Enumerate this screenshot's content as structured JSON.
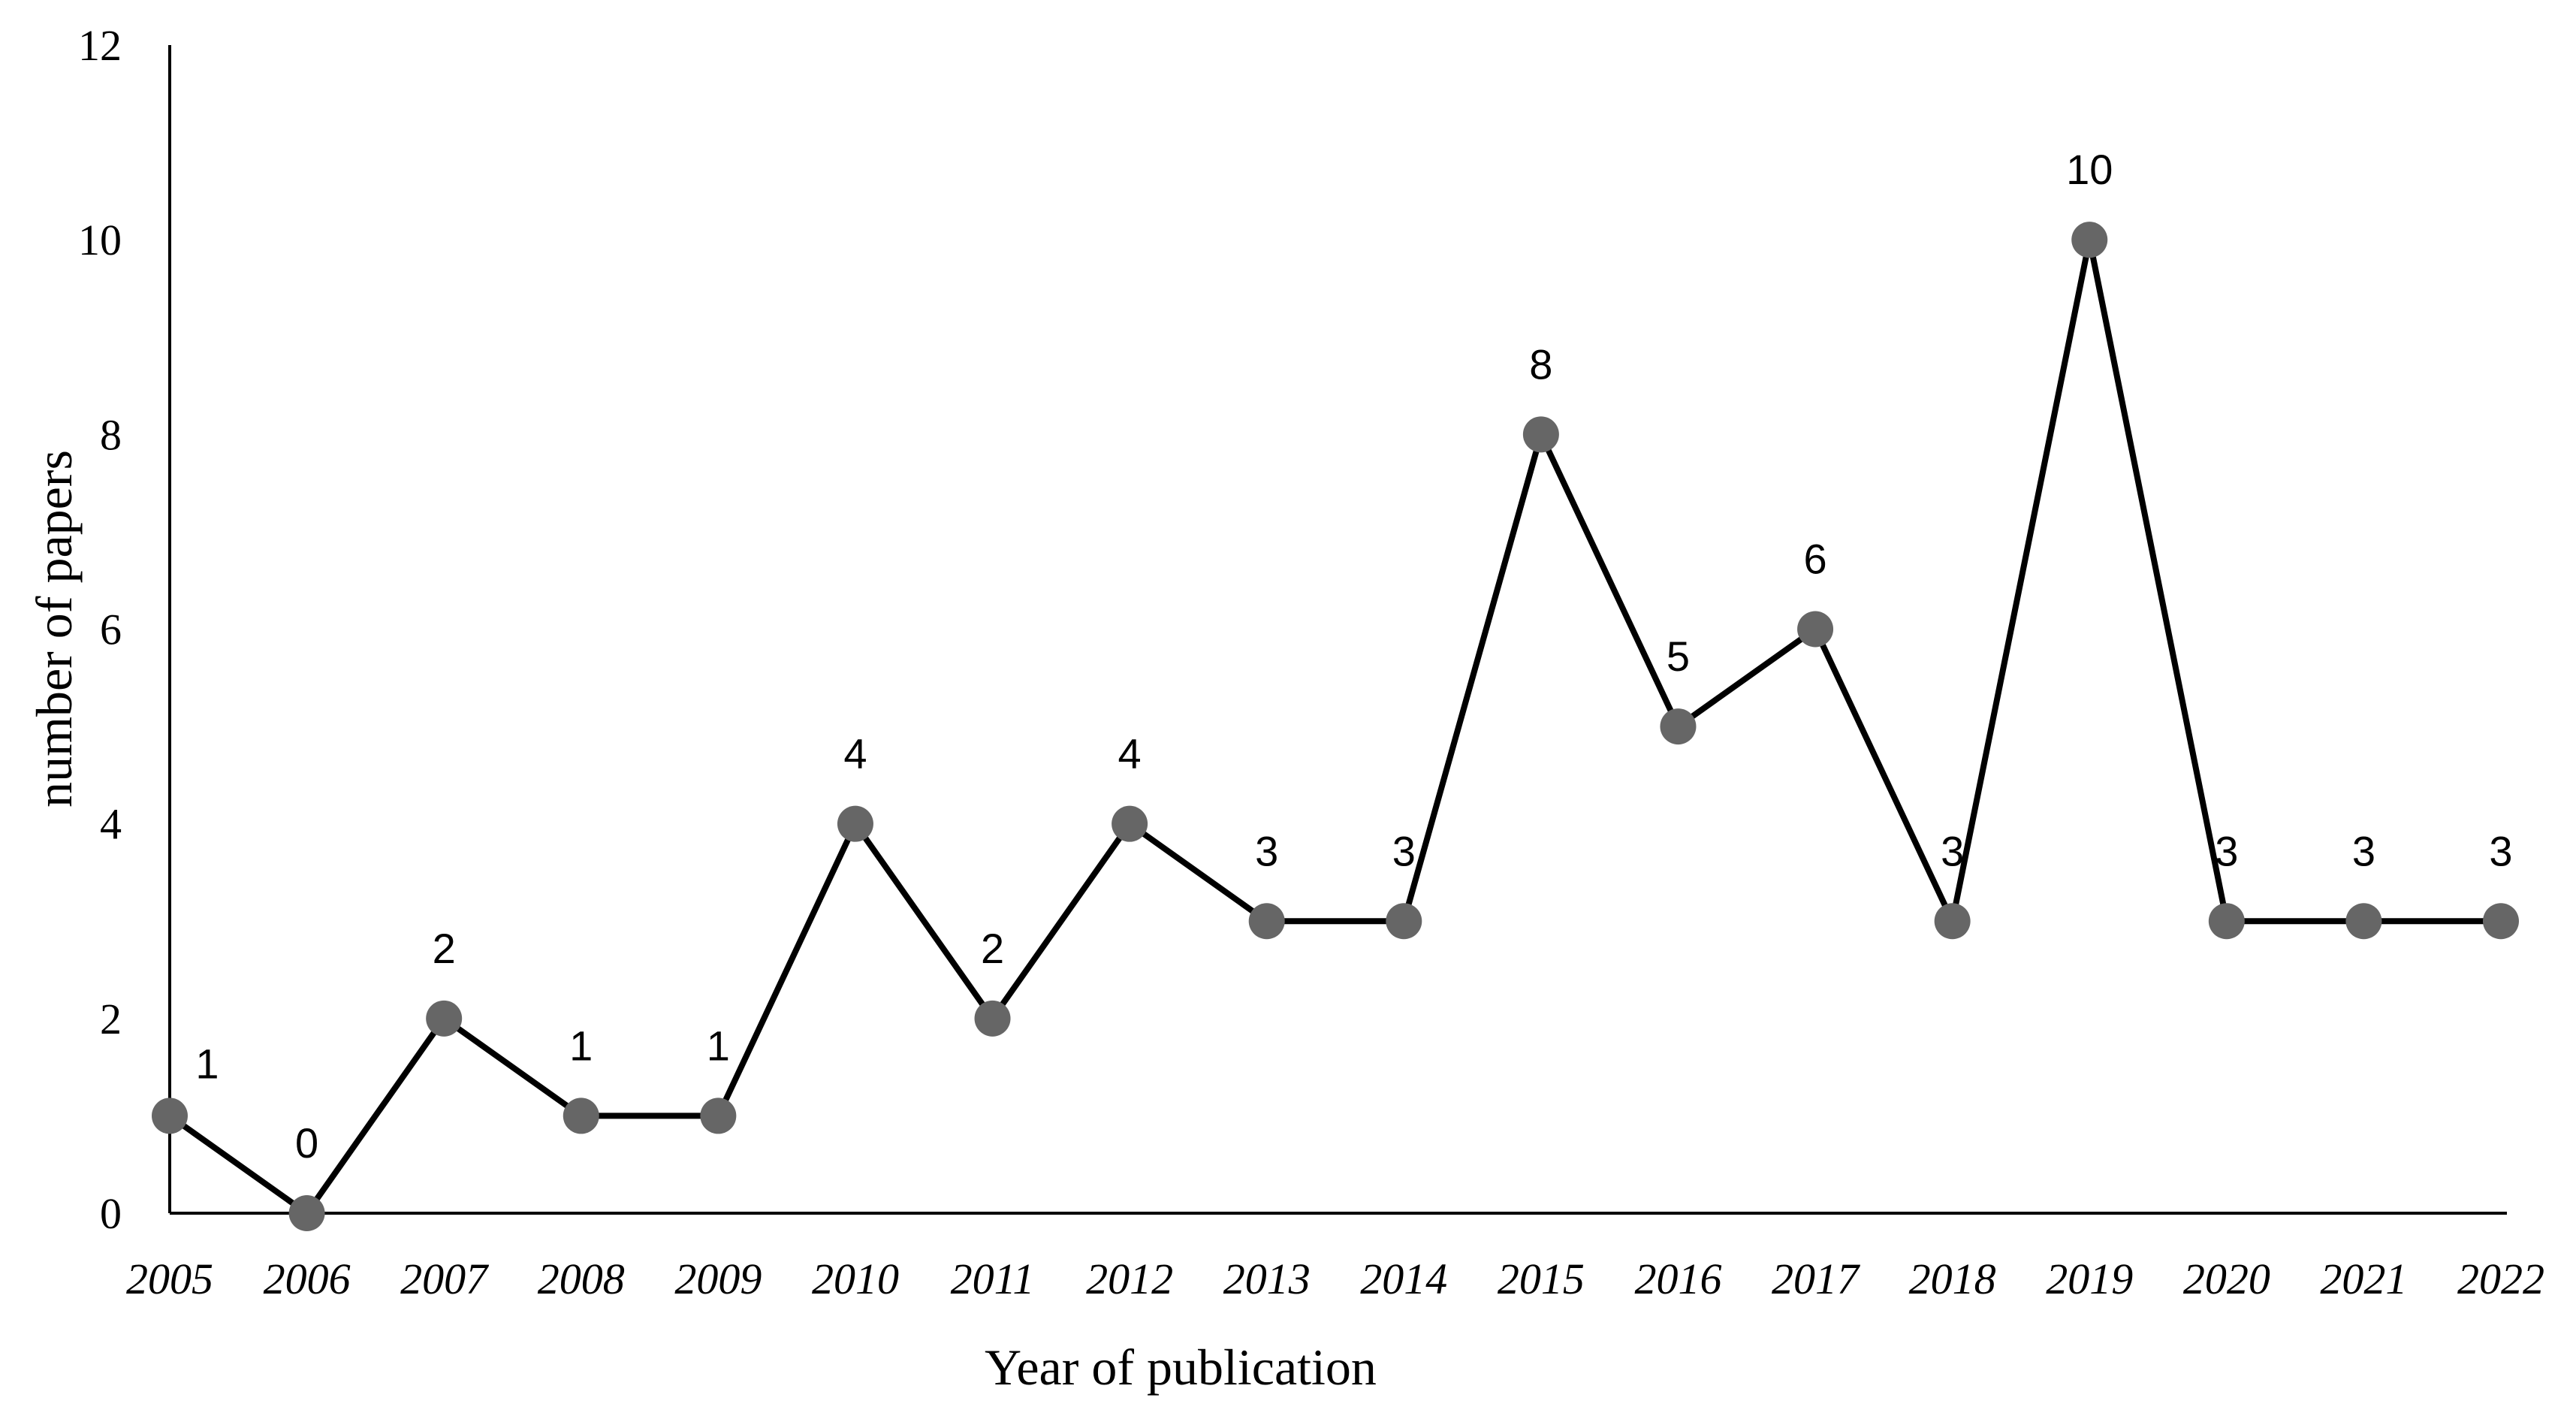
{
  "chart_data": {
    "type": "line",
    "title": "",
    "xlabel": "Year of publication",
    "ylabel": "number of papers",
    "x": [
      "2005",
      "2006",
      "2007",
      "2008",
      "2009",
      "2010",
      "2011",
      "2012",
      "2013",
      "2014",
      "2015",
      "2016",
      "2017",
      "2018",
      "2019",
      "2020",
      "2021",
      "2022"
    ],
    "series": [
      {
        "values": [
          1,
          0,
          2,
          1,
          1,
          4,
          2,
          4,
          3,
          3,
          8,
          5,
          6,
          3,
          10,
          3,
          3,
          3
        ]
      }
    ],
    "data_labels": [
      "1",
      "0",
      "2",
      "1",
      "1",
      "4",
      "2",
      "4",
      "3",
      "3",
      "8",
      "5",
      "6",
      "3",
      "10",
      "3",
      "3",
      "3"
    ],
    "yticks": [
      "0",
      "2",
      "4",
      "6",
      "8",
      "10",
      "12"
    ],
    "ylim": [
      0,
      12
    ],
    "grid": false,
    "legend": "none",
    "line_color": "#000000",
    "marker_color": "#666666"
  }
}
